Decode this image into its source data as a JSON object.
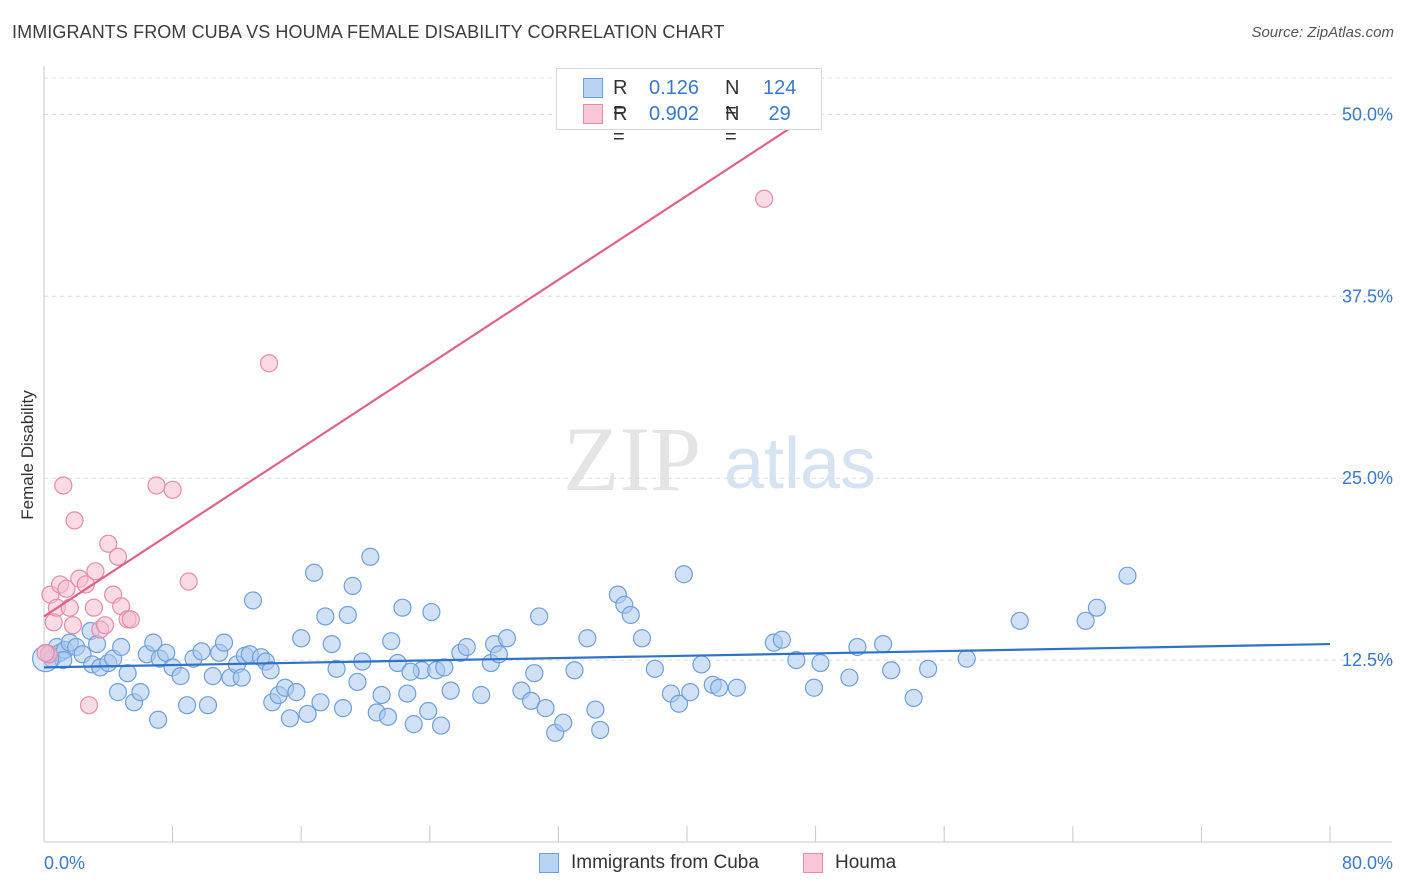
{
  "title": "IMMIGRANTS FROM CUBA VS HOUMA FEMALE DISABILITY CORRELATION CHART",
  "source": "Source: ZipAtlas.com",
  "watermark": {
    "zip": "ZIP",
    "atlas": "atlas"
  },
  "stats": [
    {
      "r_label": "R =",
      "r_value": "0.126",
      "n_label": "N =",
      "n_value": "124"
    },
    {
      "r_label": "R =",
      "r_value": "0.902",
      "n_label": "N =",
      "n_value": " 29"
    }
  ],
  "legend": [
    {
      "label": "Immigrants from Cuba"
    },
    {
      "label": "Houma"
    }
  ],
  "colors": {
    "cuba_fill": "#a9c8ef",
    "cuba_stroke": "#6f9fdc",
    "cuba_line": "#2f73c9",
    "houma_fill": "#f6bcd0",
    "houma_stroke": "#e88aab",
    "houma_line": "#e0628c",
    "tick_text": "#3a78c9",
    "grid": "#dcdcdc"
  },
  "chart_data": {
    "type": "scatter",
    "title": "IMMIGRANTS FROM CUBA VS HOUMA FEMALE DISABILITY CORRELATION CHART",
    "xlabel": "",
    "ylabel": "Female Disability",
    "xlim": [
      0,
      80
    ],
    "ylim": [
      0,
      52.5
    ],
    "x_tick_labels": [
      {
        "value": 0,
        "label": "0.0%"
      },
      {
        "value": 80,
        "label": "80.0%"
      }
    ],
    "y_tick_labels": [
      {
        "value": 12.5,
        "label": "12.5%"
      },
      {
        "value": 25,
        "label": "25.0%"
      },
      {
        "value": 37.5,
        "label": "37.5%"
      },
      {
        "value": 50,
        "label": "50.0%"
      }
    ],
    "grid": "horizontal dashed",
    "legend_position": "bottom-center",
    "series": [
      {
        "name": "Immigrants from Cuba",
        "trend": {
          "x": [
            0,
            80
          ],
          "y": [
            12.0,
            13.6
          ]
        },
        "points": [
          [
            0.3,
            12.9
          ],
          [
            0.5,
            12.6
          ],
          [
            0.8,
            13.4
          ],
          [
            1.0,
            13.0
          ],
          [
            1.3,
            13.2
          ],
          [
            1.6,
            13.7
          ],
          [
            2.0,
            13.4
          ],
          [
            2.4,
            12.9
          ],
          [
            2.9,
            14.5
          ],
          [
            3.3,
            13.6
          ],
          [
            3.0,
            12.2
          ],
          [
            3.5,
            12.0
          ],
          [
            4.0,
            12.3
          ],
          [
            4.3,
            12.6
          ],
          [
            4.8,
            13.4
          ],
          [
            5.2,
            11.6
          ],
          [
            5.6,
            9.6
          ],
          [
            6.0,
            10.3
          ],
          [
            6.4,
            12.9
          ],
          [
            6.8,
            13.7
          ],
          [
            7.2,
            12.6
          ],
          [
            7.6,
            13.0
          ],
          [
            8.0,
            12.0
          ],
          [
            8.5,
            11.4
          ],
          [
            8.9,
            9.4
          ],
          [
            9.3,
            12.6
          ],
          [
            9.8,
            13.1
          ],
          [
            10.2,
            9.4
          ],
          [
            10.5,
            11.4
          ],
          [
            10.9,
            13.0
          ],
          [
            11.2,
            13.7
          ],
          [
            11.6,
            11.3
          ],
          [
            12.0,
            12.2
          ],
          [
            12.3,
            11.3
          ],
          [
            12.5,
            12.8
          ],
          [
            12.8,
            12.9
          ],
          [
            13.0,
            16.6
          ],
          [
            13.5,
            12.7
          ],
          [
            13.8,
            12.4
          ],
          [
            14.2,
            9.6
          ],
          [
            14.6,
            10.1
          ],
          [
            15.0,
            10.6
          ],
          [
            15.3,
            8.5
          ],
          [
            15.7,
            10.3
          ],
          [
            16.0,
            14.0
          ],
          [
            16.4,
            8.8
          ],
          [
            16.8,
            18.5
          ],
          [
            17.2,
            9.6
          ],
          [
            17.5,
            15.5
          ],
          [
            17.9,
            13.6
          ],
          [
            18.2,
            11.9
          ],
          [
            18.6,
            9.2
          ],
          [
            18.9,
            15.6
          ],
          [
            19.2,
            17.6
          ],
          [
            19.5,
            11.0
          ],
          [
            19.8,
            12.4
          ],
          [
            20.3,
            19.6
          ],
          [
            20.7,
            8.9
          ],
          [
            21.0,
            10.1
          ],
          [
            21.4,
            8.6
          ],
          [
            21.6,
            13.8
          ],
          [
            22.0,
            12.3
          ],
          [
            22.3,
            16.1
          ],
          [
            22.6,
            10.2
          ],
          [
            23.0,
            8.1
          ],
          [
            23.5,
            11.8
          ],
          [
            23.9,
            9.0
          ],
          [
            24.1,
            15.8
          ],
          [
            24.4,
            11.8
          ],
          [
            24.7,
            8.0
          ],
          [
            24.9,
            12.0
          ],
          [
            25.3,
            10.4
          ],
          [
            25.9,
            13.0
          ],
          [
            26.3,
            13.4
          ],
          [
            27.2,
            10.1
          ],
          [
            27.8,
            12.3
          ],
          [
            28.0,
            13.6
          ],
          [
            28.3,
            12.9
          ],
          [
            28.8,
            14.0
          ],
          [
            29.7,
            10.4
          ],
          [
            30.3,
            9.7
          ],
          [
            30.5,
            11.6
          ],
          [
            30.8,
            15.5
          ],
          [
            31.2,
            9.2
          ],
          [
            31.8,
            7.5
          ],
          [
            32.3,
            8.2
          ],
          [
            33.0,
            11.8
          ],
          [
            33.8,
            14.0
          ],
          [
            34.3,
            9.1
          ],
          [
            34.6,
            7.7
          ],
          [
            35.7,
            17.0
          ],
          [
            36.1,
            16.3
          ],
          [
            36.5,
            15.6
          ],
          [
            37.2,
            14.0
          ],
          [
            38.0,
            11.9
          ],
          [
            39.0,
            10.2
          ],
          [
            39.5,
            9.5
          ],
          [
            39.8,
            18.4
          ],
          [
            40.2,
            10.3
          ],
          [
            40.9,
            12.2
          ],
          [
            41.6,
            10.8
          ],
          [
            42.0,
            10.6
          ],
          [
            43.1,
            10.6
          ],
          [
            45.4,
            13.7
          ],
          [
            45.9,
            13.9
          ],
          [
            46.8,
            12.5
          ],
          [
            47.9,
            10.6
          ],
          [
            48.3,
            12.3
          ],
          [
            50.1,
            11.3
          ],
          [
            50.6,
            13.4
          ],
          [
            52.2,
            13.6
          ],
          [
            52.7,
            11.8
          ],
          [
            54.1,
            9.9
          ],
          [
            55.0,
            11.9
          ],
          [
            57.4,
            12.6
          ],
          [
            60.7,
            15.2
          ],
          [
            64.8,
            15.2
          ],
          [
            65.5,
            16.1
          ],
          [
            67.4,
            18.3
          ],
          [
            1.2,
            12.5
          ],
          [
            4.6,
            10.3
          ],
          [
            7.1,
            8.4
          ],
          [
            14.1,
            11.8
          ],
          [
            22.8,
            11.7
          ]
        ]
      },
      {
        "name": "Houma",
        "trend": {
          "x": [
            0,
            48
          ],
          "y": [
            15.5,
            50.2
          ]
        },
        "points": [
          [
            0.3,
            12.9
          ],
          [
            0.4,
            17.0
          ],
          [
            0.6,
            15.1
          ],
          [
            0.8,
            16.1
          ],
          [
            1.0,
            17.7
          ],
          [
            1.2,
            24.5
          ],
          [
            1.4,
            17.4
          ],
          [
            1.6,
            16.1
          ],
          [
            1.8,
            14.9
          ],
          [
            1.9,
            22.1
          ],
          [
            2.2,
            18.1
          ],
          [
            2.6,
            17.7
          ],
          [
            2.8,
            9.4
          ],
          [
            3.1,
            16.1
          ],
          [
            3.2,
            18.6
          ],
          [
            3.5,
            14.6
          ],
          [
            3.8,
            14.9
          ],
          [
            4.0,
            20.5
          ],
          [
            4.3,
            17.0
          ],
          [
            4.6,
            19.6
          ],
          [
            4.8,
            16.2
          ],
          [
            5.2,
            15.3
          ],
          [
            5.4,
            15.3
          ],
          [
            7.0,
            24.5
          ],
          [
            8.0,
            24.2
          ],
          [
            9.0,
            17.9
          ],
          [
            14.0,
            32.9
          ],
          [
            44.8,
            44.2
          ],
          [
            0.1,
            13.0
          ]
        ]
      }
    ]
  }
}
